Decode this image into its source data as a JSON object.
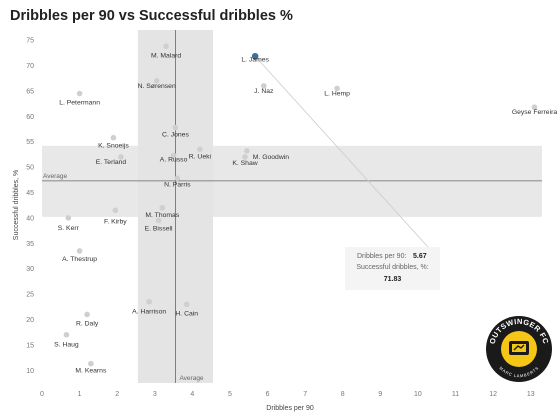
{
  "chart_data": {
    "type": "scatter",
    "title": "Dribbles per 90 vs Successful dribbles %",
    "xlabel": "Dribbles per 90",
    "ylabel": "Successful dribbles, %",
    "xlim": [
      0,
      13.3
    ],
    "ylim": [
      7.5,
      77
    ],
    "xticks": [
      0,
      1,
      2,
      3,
      4,
      5,
      6,
      7,
      8,
      9,
      10,
      11,
      12,
      13
    ],
    "yticks": [
      10,
      15,
      20,
      25,
      30,
      35,
      40,
      45,
      50,
      55,
      60,
      65,
      70,
      75
    ],
    "grid": false,
    "x_band": [
      2.55,
      4.55
    ],
    "y_band": [
      40.2,
      54.2
    ],
    "avg_x": 3.55,
    "avg_y": 47.3,
    "avg_x_label": "Average",
    "avg_y_label": "Average",
    "highlight_color": "#3e6e9a",
    "point_color": "#cfcfcf",
    "points": [
      {
        "name": "M. Malard",
        "x": 3.3,
        "y": 73.8
      },
      {
        "name": "L. James",
        "x": 5.67,
        "y": 71.83,
        "highlight": true
      },
      {
        "name": "N. Sørensen",
        "x": 3.05,
        "y": 67.0
      },
      {
        "name": "J. Naz",
        "x": 5.9,
        "y": 66.0
      },
      {
        "name": "L. Hemp",
        "x": 7.85,
        "y": 65.5
      },
      {
        "name": "L. Petermann",
        "x": 1.0,
        "y": 64.5
      },
      {
        "name": "Geyse Ferreira",
        "x": 13.1,
        "y": 61.8
      },
      {
        "name": "C. Jones",
        "x": 3.55,
        "y": 57.8
      },
      {
        "name": "K. Snoeijs",
        "x": 1.9,
        "y": 55.8
      },
      {
        "name": "R. Ueki",
        "x": 4.2,
        "y": 53.5
      },
      {
        "name": "M. Goodwin",
        "x": 5.45,
        "y": 53.2
      },
      {
        "name": "K. Shaw",
        "x": 5.4,
        "y": 52.0
      },
      {
        "name": "E. Terland",
        "x": 2.1,
        "y": 52.0
      },
      {
        "name": "A. Russo",
        "x": 3.5,
        "y": 52.3
      },
      {
        "name": "N. Parris",
        "x": 3.6,
        "y": 47.8
      },
      {
        "name": "M. Thomas",
        "x": 3.2,
        "y": 42.0
      },
      {
        "name": "F. Kirby",
        "x": 1.95,
        "y": 41.5
      },
      {
        "name": "S. Kerr",
        "x": 0.7,
        "y": 40.0
      },
      {
        "name": "E. Bissell",
        "x": 3.1,
        "y": 39.5
      },
      {
        "name": "A. Thestrup",
        "x": 1.0,
        "y": 33.5
      },
      {
        "name": "A. Harrison",
        "x": 2.85,
        "y": 23.5
      },
      {
        "name": "H. Cain",
        "x": 3.85,
        "y": 23.0
      },
      {
        "name": "R. Daly",
        "x": 1.2,
        "y": 21.0
      },
      {
        "name": "S. Haug",
        "x": 0.65,
        "y": 17.0
      },
      {
        "name": "M. Kearns",
        "x": 1.3,
        "y": 11.3
      }
    ],
    "tooltip": {
      "x_label": "Dribbles per 90:",
      "x_value": "5.67",
      "y_label": "Successful dribbles, %:",
      "y_value": "71.83"
    }
  },
  "logo": {
    "top_text": "OUTSWINGER FC",
    "bottom_text": "MARC LAMBERTS",
    "colors": {
      "ring": "#1a1a1a",
      "fill": "#f5c518"
    }
  }
}
